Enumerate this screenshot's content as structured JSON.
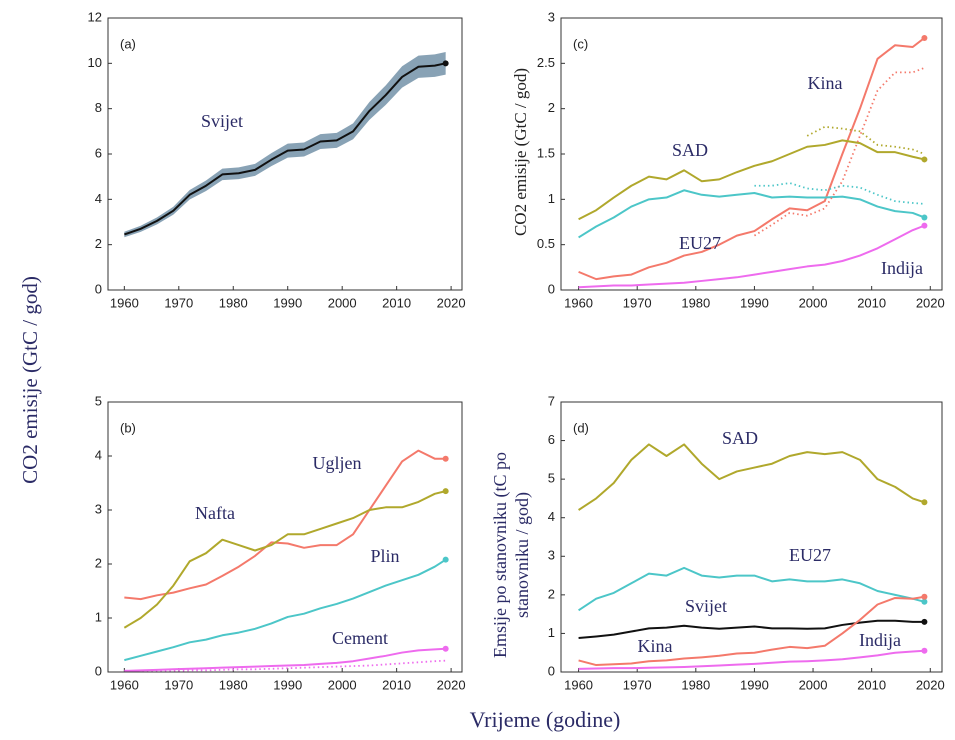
{
  "xlabel": "Vrijeme (godine)",
  "chart_data": [
    {
      "type": "line",
      "label": "(a)",
      "ylabel": "CO2 emisije (GtC / god)",
      "x": [
        1960,
        1963,
        1966,
        1969,
        1972,
        1975,
        1978,
        1981,
        1984,
        1987,
        1990,
        1993,
        1996,
        1999,
        2002,
        2005,
        2008,
        2011,
        2014,
        2017,
        2019
      ],
      "xlim": [
        1957,
        2022
      ],
      "xticks": [
        1960,
        1970,
        1980,
        1990,
        2000,
        2010,
        2020
      ],
      "ylim": [
        0,
        12
      ],
      "yticks": [
        0,
        2,
        4,
        6,
        8,
        10,
        12
      ],
      "uncertainty_fraction": 0.05,
      "band_color": "#7b98ad",
      "end_marker": true,
      "series": [
        {
          "name": "Svijet",
          "color": "#111111",
          "values": [
            2.45,
            2.7,
            3.05,
            3.5,
            4.2,
            4.6,
            5.1,
            5.15,
            5.3,
            5.75,
            6.15,
            6.2,
            6.55,
            6.6,
            7.0,
            7.9,
            8.6,
            9.4,
            9.85,
            9.9,
            10.0
          ]
        }
      ]
    },
    {
      "type": "line",
      "label": "(b)",
      "x": [
        1960,
        1963,
        1966,
        1969,
        1972,
        1975,
        1978,
        1981,
        1984,
        1987,
        1990,
        1993,
        1996,
        1999,
        2002,
        2005,
        2008,
        2011,
        2014,
        2017,
        2019
      ],
      "xlim": [
        1957,
        2022
      ],
      "xticks": [
        1960,
        1970,
        1980,
        1990,
        2000,
        2010,
        2020
      ],
      "ylim": [
        0,
        5
      ],
      "yticks": [
        0,
        1,
        2,
        3,
        4,
        5
      ],
      "end_marker": true,
      "series": [
        {
          "name": "Ugljen",
          "color": "#f4796b",
          "values": [
            1.38,
            1.35,
            1.42,
            1.47,
            1.55,
            1.62,
            1.78,
            1.95,
            2.15,
            2.4,
            2.38,
            2.3,
            2.35,
            2.35,
            2.55,
            3.0,
            3.45,
            3.9,
            4.1,
            3.95,
            3.95
          ]
        },
        {
          "name": "Nafta",
          "color": "#b0a82c",
          "values": [
            0.82,
            1.0,
            1.25,
            1.6,
            2.05,
            2.2,
            2.45,
            2.35,
            2.25,
            2.35,
            2.55,
            2.55,
            2.65,
            2.75,
            2.85,
            3.0,
            3.05,
            3.05,
            3.15,
            3.3,
            3.35
          ]
        },
        {
          "name": "Plin",
          "color": "#4cc6c8",
          "values": [
            0.22,
            0.3,
            0.38,
            0.46,
            0.55,
            0.6,
            0.68,
            0.73,
            0.8,
            0.9,
            1.02,
            1.08,
            1.18,
            1.26,
            1.36,
            1.48,
            1.6,
            1.7,
            1.8,
            1.95,
            2.08
          ]
        },
        {
          "name": "Cement",
          "color": "#ee6bee",
          "values": [
            0.02,
            0.03,
            0.04,
            0.05,
            0.06,
            0.07,
            0.08,
            0.09,
            0.1,
            0.11,
            0.12,
            0.13,
            0.15,
            0.17,
            0.2,
            0.25,
            0.3,
            0.36,
            0.4,
            0.42,
            0.43
          ]
        },
        {
          "color": "#ee6bee",
          "style": "dotted",
          "values": [
            0.01,
            0.01,
            0.02,
            0.02,
            0.03,
            0.03,
            0.04,
            0.05,
            0.05,
            0.06,
            0.07,
            0.08,
            0.09,
            0.1,
            0.11,
            0.12,
            0.14,
            0.16,
            0.18,
            0.2,
            0.21
          ]
        }
      ]
    },
    {
      "type": "line",
      "label": "(c)",
      "ylabel": "CO2 emisije (GtC / god)",
      "x": [
        1960,
        1963,
        1966,
        1969,
        1972,
        1975,
        1978,
        1981,
        1984,
        1987,
        1990,
        1993,
        1996,
        1999,
        2002,
        2005,
        2008,
        2011,
        2014,
        2017,
        2019
      ],
      "xlim": [
        1957,
        2022
      ],
      "xticks": [
        1960,
        1970,
        1980,
        1990,
        2000,
        2010,
        2020
      ],
      "ylim": [
        0,
        3
      ],
      "yticks": [
        0,
        0.5,
        1,
        1.5,
        2,
        2.5,
        3
      ],
      "end_marker": true,
      "series": [
        {
          "name": "Kina",
          "color": "#f4796b",
          "values": [
            0.2,
            0.12,
            0.15,
            0.17,
            0.25,
            0.3,
            0.38,
            0.42,
            0.5,
            0.6,
            0.65,
            0.78,
            0.9,
            0.88,
            0.98,
            1.5,
            2.0,
            2.55,
            2.7,
            2.68,
            2.78
          ]
        },
        {
          "name": "SAD",
          "color": "#b0a82c",
          "values": [
            0.78,
            0.88,
            1.02,
            1.15,
            1.25,
            1.22,
            1.32,
            1.2,
            1.22,
            1.3,
            1.37,
            1.42,
            1.5,
            1.58,
            1.6,
            1.65,
            1.62,
            1.52,
            1.52,
            1.47,
            1.44
          ]
        },
        {
          "name": "EU27",
          "color": "#4cc6c8",
          "values": [
            0.58,
            0.7,
            0.8,
            0.92,
            1.0,
            1.02,
            1.1,
            1.05,
            1.03,
            1.05,
            1.07,
            1.02,
            1.03,
            1.02,
            1.02,
            1.03,
            1.0,
            0.92,
            0.87,
            0.85,
            0.8
          ]
        },
        {
          "name": "Indija",
          "color": "#ee6bee",
          "values": [
            0.03,
            0.04,
            0.05,
            0.05,
            0.06,
            0.07,
            0.08,
            0.1,
            0.12,
            0.14,
            0.17,
            0.2,
            0.23,
            0.26,
            0.28,
            0.32,
            0.38,
            0.46,
            0.56,
            0.66,
            0.71
          ]
        },
        {
          "color": "#f4796b",
          "style": "dotted",
          "values": [
            null,
            null,
            null,
            null,
            null,
            null,
            null,
            null,
            null,
            null,
            0.6,
            0.72,
            0.85,
            0.82,
            0.9,
            1.2,
            1.7,
            2.2,
            2.4,
            2.4,
            2.45
          ]
        },
        {
          "color": "#b0a82c",
          "style": "dotted",
          "values": [
            null,
            null,
            null,
            null,
            null,
            null,
            null,
            null,
            null,
            null,
            null,
            null,
            null,
            1.7,
            1.8,
            1.78,
            1.75,
            1.6,
            1.58,
            1.55,
            1.5
          ]
        },
        {
          "color": "#4cc6c8",
          "style": "dotted",
          "values": [
            null,
            null,
            null,
            null,
            null,
            null,
            null,
            null,
            null,
            null,
            1.15,
            1.15,
            1.18,
            1.12,
            1.1,
            1.15,
            1.13,
            1.05,
            0.98,
            0.96,
            0.95
          ]
        }
      ]
    },
    {
      "type": "line",
      "label": "(d)",
      "ylabel": [
        "Emsije po stanovniku (tC po",
        "stanovniku / god)"
      ],
      "x": [
        1960,
        1963,
        1966,
        1969,
        1972,
        1975,
        1978,
        1981,
        1984,
        1987,
        1990,
        1993,
        1996,
        1999,
        2002,
        2005,
        2008,
        2011,
        2014,
        2017,
        2019
      ],
      "xlim": [
        1957,
        2022
      ],
      "xticks": [
        1960,
        1970,
        1980,
        1990,
        2000,
        2010,
        2020
      ],
      "ylim": [
        0,
        7
      ],
      "yticks": [
        0,
        1,
        2,
        3,
        4,
        5,
        6,
        7
      ],
      "end_marker": true,
      "series": [
        {
          "name": "SAD",
          "color": "#b0a82c",
          "values": [
            4.2,
            4.5,
            4.9,
            5.5,
            5.9,
            5.6,
            5.9,
            5.4,
            5.0,
            5.2,
            5.3,
            5.4,
            5.6,
            5.7,
            5.65,
            5.7,
            5.5,
            5.0,
            4.8,
            4.5,
            4.4
          ]
        },
        {
          "name": "EU27",
          "color": "#4cc6c8",
          "values": [
            1.6,
            1.9,
            2.05,
            2.3,
            2.55,
            2.5,
            2.7,
            2.5,
            2.45,
            2.5,
            2.5,
            2.35,
            2.4,
            2.35,
            2.35,
            2.4,
            2.3,
            2.1,
            2.0,
            1.9,
            1.82
          ]
        },
        {
          "name": "Svijet",
          "color": "#111111",
          "values": [
            0.88,
            0.92,
            0.97,
            1.05,
            1.13,
            1.15,
            1.2,
            1.15,
            1.12,
            1.15,
            1.18,
            1.13,
            1.13,
            1.12,
            1.13,
            1.22,
            1.28,
            1.33,
            1.33,
            1.3,
            1.3
          ]
        },
        {
          "name": "Kina",
          "color": "#f4796b",
          "values": [
            0.3,
            0.18,
            0.2,
            0.22,
            0.28,
            0.3,
            0.35,
            0.38,
            0.42,
            0.48,
            0.5,
            0.58,
            0.65,
            0.62,
            0.68,
            1.0,
            1.35,
            1.75,
            1.92,
            1.9,
            1.95
          ]
        },
        {
          "name": "Indija",
          "color": "#ee6bee",
          "values": [
            0.08,
            0.09,
            0.1,
            0.1,
            0.11,
            0.12,
            0.13,
            0.15,
            0.17,
            0.19,
            0.21,
            0.24,
            0.27,
            0.28,
            0.3,
            0.33,
            0.38,
            0.43,
            0.5,
            0.53,
            0.55
          ]
        }
      ]
    }
  ]
}
